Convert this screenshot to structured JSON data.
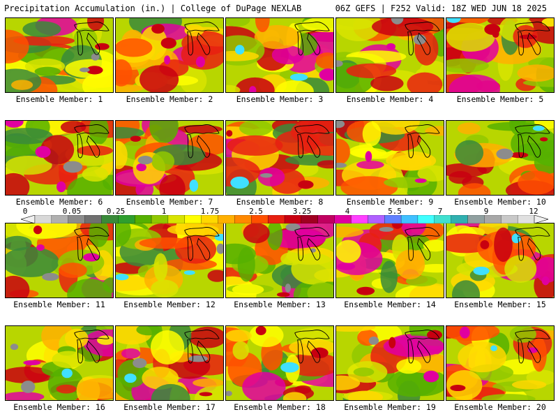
{
  "header": {
    "title": "Precipitation Accumulation (in.) | College of DuPage NEXLAB",
    "run_info": "06Z GEFS | F252 Valid: 18Z WED JUN 18 2025"
  },
  "panels": [
    {
      "label": "Ensemble Member: 1"
    },
    {
      "label": "Ensemble Member: 2"
    },
    {
      "label": "Ensemble Member: 3"
    },
    {
      "label": "Ensemble Member: 4"
    },
    {
      "label": "Ensemble Member: 5"
    },
    {
      "label": "Ensemble Member: 6"
    },
    {
      "label": "Ensemble Member: 7"
    },
    {
      "label": "Ensemble Member: 8"
    },
    {
      "label": "Ensemble Member: 9"
    },
    {
      "label": "Ensemble Member: 10"
    },
    {
      "label": "Ensemble Member: 11"
    },
    {
      "label": "Ensemble Member: 12"
    },
    {
      "label": "Ensemble Member: 13"
    },
    {
      "label": "Ensemble Member: 14"
    },
    {
      "label": "Ensemble Member: 15"
    },
    {
      "label": "Ensemble Member: 16"
    },
    {
      "label": "Ensemble Member: 17"
    },
    {
      "label": "Ensemble Member: 18"
    },
    {
      "label": "Ensemble Member: 19"
    },
    {
      "label": "Ensemble Member: 20"
    }
  ],
  "colorbar": {
    "tick_labels": [
      "0",
      "0.05",
      "0.25",
      "1",
      "1.75",
      "2.5",
      "3.25",
      "4",
      "5.5",
      "7",
      "9",
      "12"
    ],
    "colors": [
      "#d8d8d8",
      "#b0b0b0",
      "#8c8c8c",
      "#707070",
      "#3a8a3a",
      "#2e9e2e",
      "#56b000",
      "#90c800",
      "#d8e400",
      "#ffff00",
      "#ffd800",
      "#ffb000",
      "#ff8800",
      "#ff5000",
      "#e82010",
      "#c80010",
      "#a00020",
      "#c00060",
      "#e000a0",
      "#ff40ff",
      "#b060ff",
      "#6080ff",
      "#40c0ff",
      "#40ffff",
      "#40e0d0",
      "#30b0b0",
      "#90a0a0",
      "#a8a8a8",
      "#c8c8c8",
      "#e0e0e0"
    ]
  }
}
